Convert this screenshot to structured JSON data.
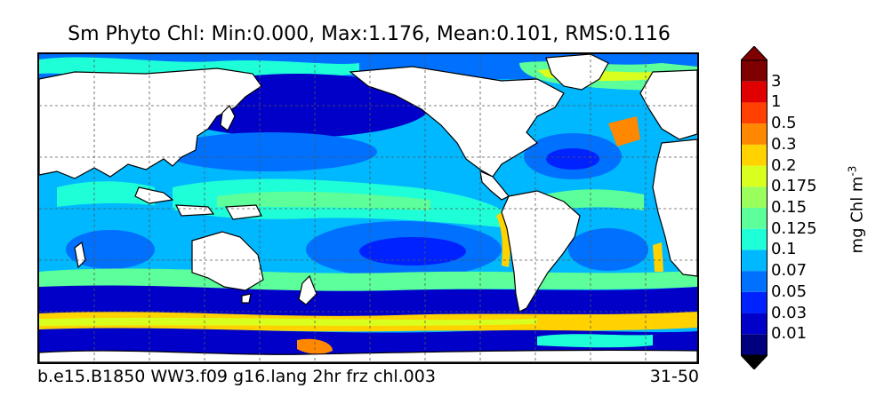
{
  "title": "Sm Phyto Chl: Min:0.000, Max:1.176, Mean:0.101, RMS:0.116",
  "caption_left": "b.e15.B1850 WW3.f09 g16.lang 2hr frz chl.003",
  "caption_right": "31-50",
  "colorbar": {
    "label": "mg Chl m",
    "label_exponent": "-3",
    "ticks": [
      "0.01",
      "0.03",
      "0.05",
      "0.07",
      "0.1",
      "0.125",
      "0.15",
      "0.175",
      "0.2",
      "0.3",
      "0.5",
      "1",
      "3"
    ],
    "colors": [
      "#00007f",
      "#0000c8",
      "#0022ff",
      "#0070ff",
      "#00b8ff",
      "#1effd8",
      "#5cff9a",
      "#9aff5c",
      "#d8ff1e",
      "#ffd200",
      "#ff8800",
      "#ff4000",
      "#e00000",
      "#7f0000"
    ]
  },
  "colors": {
    "land": "#ffffff",
    "ocean_base": "#00b8ff",
    "polar_low": "#0000c8",
    "gyre": "#0070ff",
    "equatorial": "#5cff9a",
    "coastal_high": "#ffd200",
    "bloom": "#ff8800"
  }
}
